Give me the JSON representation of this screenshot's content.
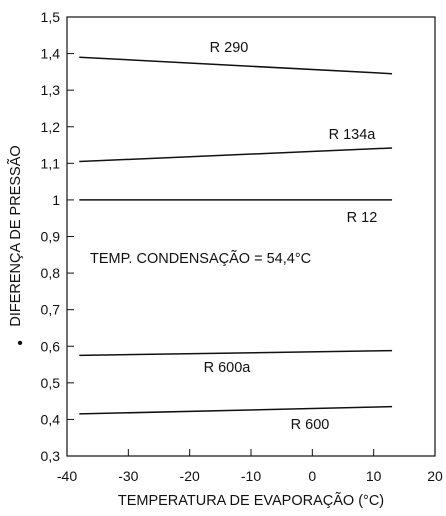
{
  "chart_data": {
    "type": "line",
    "xlabel": "TEMPERATURA DE EVAPORAÇÃO  (°C)",
    "ylabel": "DIFERENÇA DE PRESSÃO",
    "ylabel_prefix": "•",
    "xlim": [
      -40,
      20
    ],
    "ylim": [
      0.3,
      1.5
    ],
    "xticks": [
      -40,
      -30,
      -20,
      -10,
      0,
      10,
      20
    ],
    "xtick_labels": [
      "-40",
      "-30",
      "-20",
      "-10",
      "0",
      "10",
      "20"
    ],
    "yticks": [
      0.3,
      0.4,
      0.5,
      0.6,
      0.7,
      0.8,
      0.9,
      1.0,
      1.1,
      1.2,
      1.3,
      1.4,
      1.5
    ],
    "ytick_labels": [
      "0,3",
      "0,4",
      "0,5",
      "0,6",
      "0,7",
      "0,8",
      "0,9",
      "1",
      "1,1",
      "1,2",
      "1,3",
      "1,4",
      "1,5"
    ],
    "grid": false,
    "annotation": "TEMP. CONDENSAÇÃO = 54,4°C",
    "series": [
      {
        "name": "R 290",
        "x": [
          -38,
          13
        ],
        "y": [
          1.39,
          1.345
        ]
      },
      {
        "name": "R 134a",
        "x": [
          -38,
          13
        ],
        "y": [
          1.105,
          1.142
        ]
      },
      {
        "name": "R 12",
        "x": [
          -38,
          13
        ],
        "y": [
          1.0,
          1.0
        ]
      },
      {
        "name": "R 600a",
        "x": [
          -38,
          13
        ],
        "y": [
          0.575,
          0.588
        ]
      },
      {
        "name": "R 600",
        "x": [
          -38,
          13
        ],
        "y": [
          0.415,
          0.435
        ]
      }
    ]
  }
}
